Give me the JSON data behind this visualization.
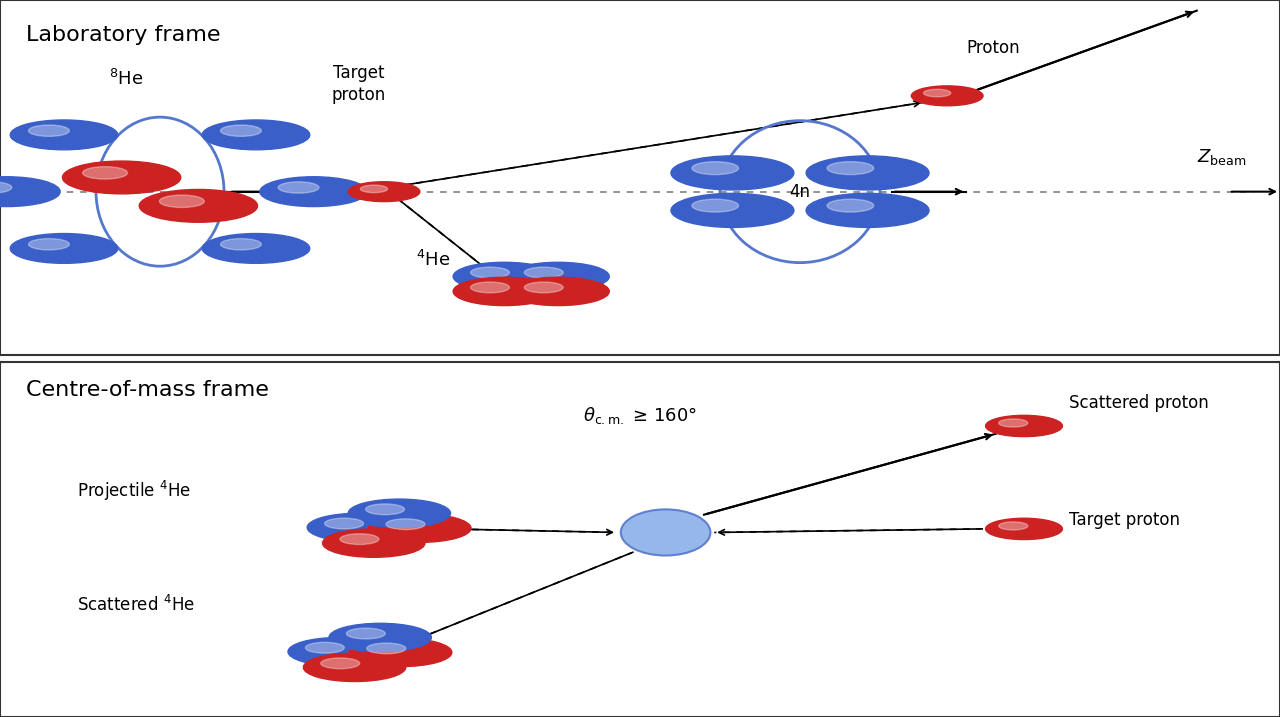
{
  "bg_color": "#ffffff",
  "border_color": "#333333",
  "blue_neutron": "#3a5fc8",
  "red_proton": "#cc2222",
  "light_blue_cm": "#8ab0e8",
  "panel1_title": "Laboratory frame",
  "panel2_title": "Centre-of-mass frame",
  "text_color": "#000000",
  "p1_he8_label": "$^8$He",
  "p1_tp_label": "Target\nproton",
  "p1_he4_label": "$^4$He",
  "p1_4n_label": "4n",
  "p1_proton_label": "Proton",
  "p1_zbeam_label": "$Z_{\\mathrm{beam}}$",
  "p2_proj_label": "Projectile $^4$He",
  "p2_scat4_label": "Scattered $^4$He",
  "p2_scat_p_label": "Scattered proton",
  "p2_tp_label": "Target proton",
  "p2_theta_label": "$\\theta_{\\mathrm{c.m.}}$ ≥ 160°"
}
